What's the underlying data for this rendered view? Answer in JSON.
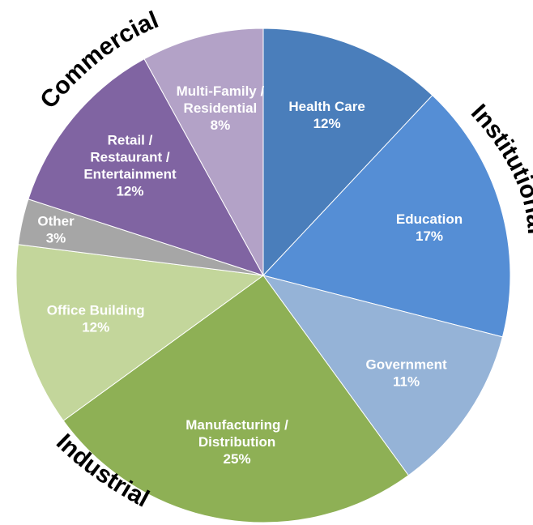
{
  "chart_data": {
    "type": "pie",
    "title": "",
    "slices": [
      {
        "label_lines": [
          "Health Care",
          "12%"
        ],
        "value": 12,
        "color": "#4A7EBB"
      },
      {
        "label_lines": [
          "Education",
          "17%"
        ],
        "value": 17,
        "color": "#558ED5"
      },
      {
        "label_lines": [
          "Government",
          "11%"
        ],
        "value": 11,
        "color": "#95B3D7"
      },
      {
        "label_lines": [
          "Manufacturing /",
          "Distribution",
          "25%"
        ],
        "value": 25,
        "color": "#8EB055"
      },
      {
        "label_lines": [
          "Office Building",
          "12%"
        ],
        "value": 12,
        "color": "#C3D69B"
      },
      {
        "label_lines": [
          "Other",
          "3%"
        ],
        "value": 3,
        "color": "#A6A6A6"
      },
      {
        "label_lines": [
          "Retail /",
          "Restaurant /",
          "Entertainment",
          "12%"
        ],
        "value": 12,
        "color": "#8064A2"
      },
      {
        "label_lines": [
          "Multi-Family /",
          "Residential",
          "8%"
        ],
        "value": 8,
        "color": "#B3A2C7"
      }
    ],
    "groups": [
      {
        "name": "Institutional",
        "slices": [
          "Health Care",
          "Education",
          "Government"
        ]
      },
      {
        "name": "Industrial",
        "slices": [
          "Manufacturing / Distribution",
          "Office Building"
        ]
      },
      {
        "name": "Commercial",
        "slices": [
          "Other",
          "Retail / Restaurant / Entertainment",
          "Multi-Family / Residential"
        ]
      }
    ],
    "legend": "none"
  }
}
